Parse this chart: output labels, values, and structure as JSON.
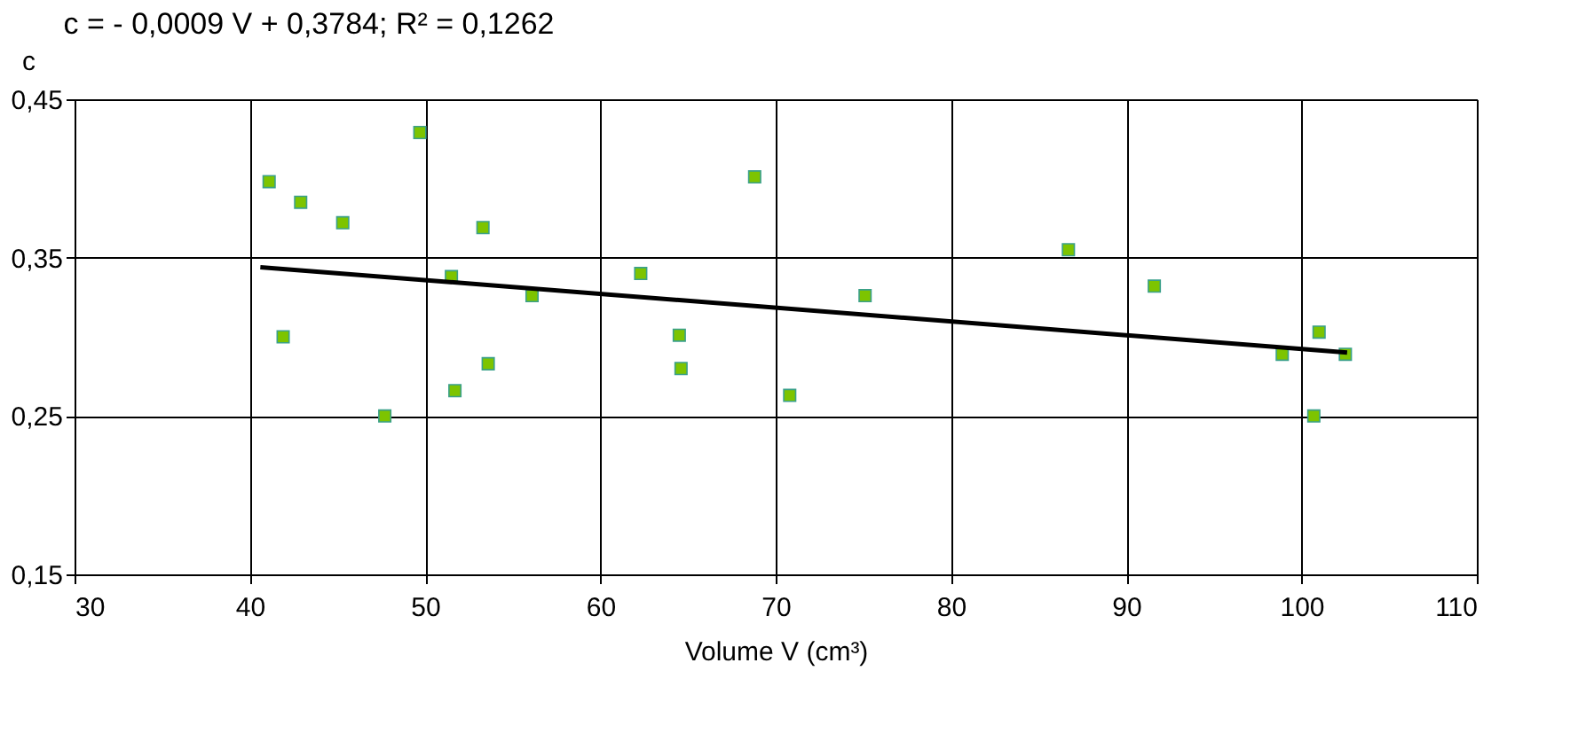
{
  "chart_data": {
    "type": "scatter",
    "title": "c = - 0,0009 V + 0,3784;  R² = 0,1262",
    "xlabel": "Volume V (cm³)",
    "ylabel": "c",
    "xlim": [
      30,
      110
    ],
    "xticks": [
      30,
      40,
      50,
      60,
      70,
      80,
      90,
      100,
      110
    ],
    "ylim": [
      0.15,
      0.45
    ],
    "yticks": [
      {
        "value": 0.15,
        "label": "0,15"
      },
      {
        "value": 0.25,
        "label": "0,25"
      },
      {
        "value": 0.35,
        "label": "0,35"
      },
      {
        "value": 0.45,
        "label": "0,45"
      }
    ],
    "grid": true,
    "series": [
      {
        "marker": "square",
        "color": "#7dc400",
        "x": [
          41.1,
          42.9,
          45.3,
          49.7,
          53.3,
          41.9,
          47.7,
          51.5,
          51.7,
          53.6,
          56.1,
          62.3,
          64.5,
          64.6,
          68.8,
          70.8,
          75.1,
          86.7,
          91.6,
          98.9,
          101.0,
          100.7,
          102.5
        ],
        "values": [
          0.398,
          0.385,
          0.372,
          0.429,
          0.369,
          0.3,
          0.25,
          0.338,
          0.266,
          0.283,
          0.326,
          0.34,
          0.301,
          0.28,
          0.401,
          0.263,
          0.326,
          0.355,
          0.332,
          0.289,
          0.303,
          0.25,
          0.289
        ]
      },
      {
        "type": "line",
        "marker": "none",
        "line_style": "solid",
        "color": "#000000",
        "x": [
          40.6,
          102.6
        ],
        "values": [
          0.344,
          0.29
        ]
      }
    ]
  }
}
